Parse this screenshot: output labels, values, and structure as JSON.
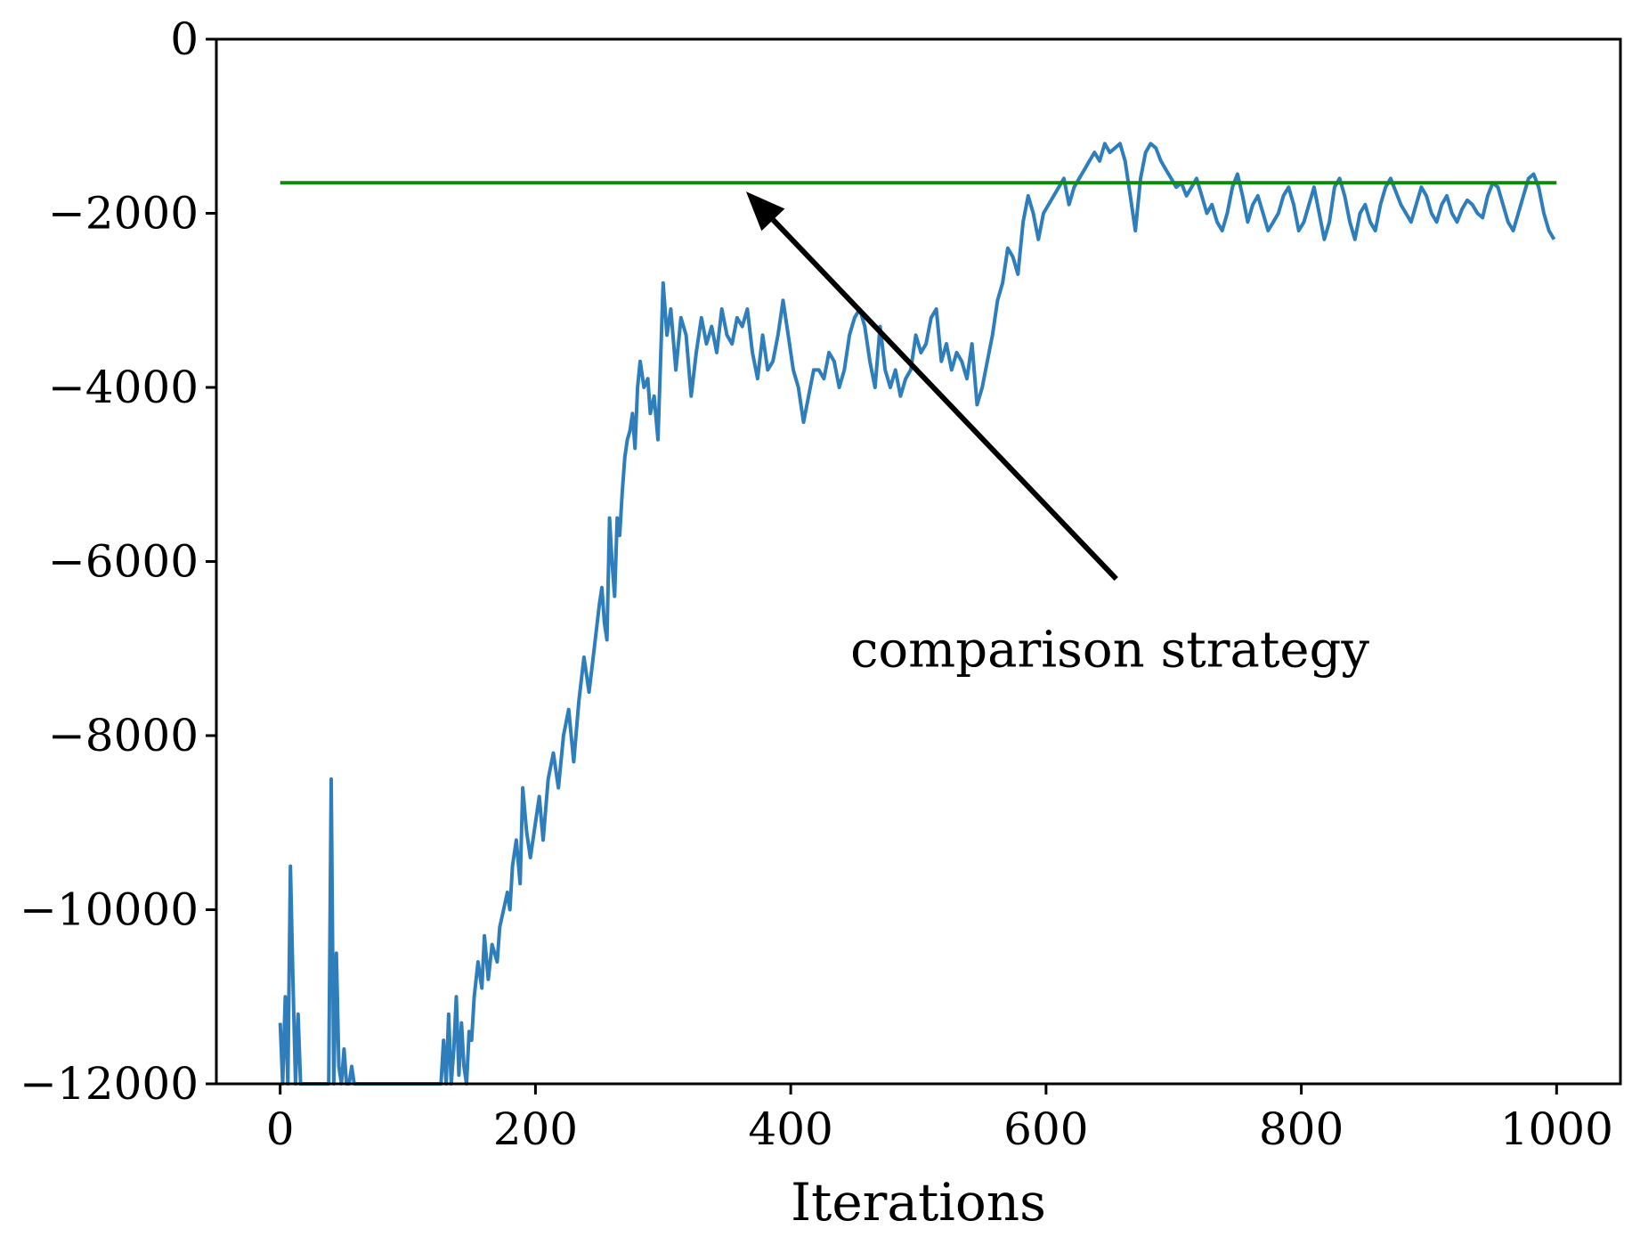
{
  "chart_data": {
    "type": "line",
    "title": "",
    "xlabel": "Iterations",
    "ylabel": "",
    "xlim": [
      -50,
      1050
    ],
    "ylim": [
      -12000,
      0
    ],
    "xticks": [
      0,
      200,
      400,
      600,
      800,
      1000
    ],
    "yticks": [
      0,
      -2000,
      -4000,
      -6000,
      -8000,
      -10000,
      -12000
    ],
    "xtick_labels": [
      "0",
      "200",
      "400",
      "600",
      "800",
      "1000"
    ],
    "ytick_labels": [
      "0",
      "−2000",
      "−4000",
      "−6000",
      "−8000",
      "−10000",
      "−12000"
    ],
    "grid": false,
    "legend": "none",
    "series": [
      {
        "color": "#2e7ebc",
        "x": [
          0,
          2,
          4,
          6,
          8,
          10,
          12,
          14,
          16,
          18,
          20,
          25,
          30,
          34,
          36,
          38,
          40,
          42,
          44,
          46,
          48,
          50,
          52,
          54,
          56,
          58,
          60,
          100,
          104,
          110,
          120,
          126,
          128,
          130,
          132,
          134,
          136,
          138,
          140,
          142,
          144,
          146,
          148,
          150,
          152,
          155,
          158,
          160,
          163,
          166,
          170,
          172,
          175,
          178,
          180,
          182,
          185,
          188,
          190,
          193,
          196,
          200,
          203,
          206,
          210,
          214,
          218,
          222,
          226,
          230,
          234,
          238,
          242,
          246,
          250,
          252,
          254,
          256,
          258,
          260,
          262,
          264,
          266,
          268,
          270,
          272,
          274,
          276,
          278,
          280,
          282,
          285,
          288,
          290,
          293,
          296,
          300,
          303,
          306,
          310,
          314,
          318,
          322,
          326,
          330,
          334,
          338,
          342,
          346,
          350,
          354,
          358,
          362,
          366,
          370,
          374,
          378,
          382,
          386,
          390,
          394,
          398,
          402,
          406,
          410,
          414,
          418,
          422,
          426,
          430,
          434,
          438,
          442,
          446,
          450,
          454,
          458,
          462,
          466,
          470,
          474,
          478,
          482,
          486,
          490,
          494,
          498,
          502,
          506,
          510,
          514,
          518,
          522,
          526,
          530,
          534,
          538,
          542,
          546,
          550,
          554,
          558,
          562,
          566,
          570,
          574,
          578,
          582,
          586,
          590,
          594,
          598,
          602,
          606,
          610,
          614,
          618,
          622,
          626,
          630,
          634,
          638,
          642,
          646,
          650,
          654,
          658,
          662,
          666,
          670,
          674,
          678,
          682,
          686,
          690,
          694,
          698,
          702,
          706,
          710,
          714,
          718,
          722,
          726,
          730,
          734,
          738,
          742,
          746,
          750,
          754,
          758,
          762,
          766,
          770,
          774,
          778,
          782,
          786,
          790,
          794,
          798,
          802,
          806,
          810,
          814,
          818,
          822,
          826,
          830,
          834,
          838,
          842,
          846,
          850,
          854,
          858,
          862,
          866,
          870,
          874,
          878,
          882,
          886,
          890,
          894,
          898,
          902,
          906,
          910,
          914,
          918,
          922,
          926,
          930,
          934,
          938,
          942,
          946,
          950,
          954,
          958,
          962,
          966,
          970,
          974,
          978,
          982,
          986,
          990,
          994,
          998
        ],
        "y": [
          -11300,
          -12000,
          -11000,
          -12000,
          -9500,
          -10800,
          -12000,
          -11200,
          -12000,
          -12000,
          -12000,
          -12000,
          -12000,
          -12000,
          -12000,
          -12000,
          -8500,
          -12000,
          -10500,
          -11800,
          -12000,
          -11600,
          -12000,
          -12000,
          -11800,
          -12000,
          -12000,
          -12000,
          -12000,
          -12000,
          -12000,
          -12000,
          -11500,
          -12000,
          -11200,
          -12000,
          -11600,
          -11000,
          -11900,
          -11300,
          -11800,
          -12000,
          -11400,
          -11500,
          -11000,
          -10600,
          -10900,
          -10300,
          -10800,
          -10400,
          -10600,
          -10200,
          -10000,
          -9800,
          -10000,
          -9500,
          -9200,
          -9700,
          -8600,
          -9100,
          -9400,
          -9000,
          -8700,
          -9200,
          -8500,
          -8200,
          -8600,
          -8000,
          -7700,
          -8300,
          -7600,
          -7100,
          -7500,
          -7000,
          -6500,
          -6300,
          -6700,
          -6900,
          -5500,
          -6000,
          -6400,
          -5500,
          -5700,
          -5200,
          -4800,
          -4600,
          -4500,
          -4300,
          -4700,
          -4000,
          -3700,
          -4000,
          -3900,
          -4300,
          -4100,
          -4600,
          -2800,
          -3400,
          -3100,
          -3800,
          -3200,
          -3400,
          -4100,
          -3600,
          -3200,
          -3500,
          -3300,
          -3600,
          -3100,
          -3400,
          -3500,
          -3200,
          -3300,
          -3100,
          -3600,
          -3900,
          -3400,
          -3800,
          -3700,
          -3400,
          -3000,
          -3400,
          -3800,
          -4000,
          -4400,
          -4100,
          -3800,
          -3800,
          -3900,
          -3600,
          -3700,
          -4000,
          -3800,
          -3400,
          -3200,
          -3100,
          -3300,
          -3700,
          -4000,
          -3300,
          -3800,
          -4000,
          -3800,
          -4100,
          -3900,
          -3800,
          -3400,
          -3600,
          -3500,
          -3200,
          -3100,
          -3700,
          -3500,
          -3800,
          -3600,
          -3700,
          -3900,
          -3500,
          -4200,
          -4000,
          -3700,
          -3400,
          -3000,
          -2800,
          -2400,
          -2500,
          -2700,
          -2100,
          -1800,
          -2000,
          -2300,
          -2000,
          -1900,
          -1800,
          -1700,
          -1600,
          -1900,
          -1700,
          -1600,
          -1500,
          -1400,
          -1300,
          -1400,
          -1200,
          -1300,
          -1250,
          -1200,
          -1400,
          -1800,
          -2200,
          -1600,
          -1300,
          -1200,
          -1250,
          -1400,
          -1500,
          -1600,
          -1700,
          -1650,
          -1800,
          -1700,
          -1600,
          -1800,
          -2000,
          -1900,
          -2100,
          -2200,
          -2000,
          -1700,
          -1550,
          -1800,
          -2100,
          -1900,
          -1800,
          -2000,
          -2200,
          -2100,
          -2000,
          -1800,
          -1700,
          -1900,
          -2200,
          -2100,
          -1900,
          -1700,
          -2000,
          -2300,
          -2100,
          -1700,
          -1600,
          -1800,
          -2100,
          -2300,
          -2000,
          -1900,
          -2100,
          -2200,
          -1900,
          -1700,
          -1600,
          -1750,
          -1900,
          -2000,
          -2100,
          -1900,
          -1700,
          -1800,
          -2000,
          -2100,
          -1900,
          -1800,
          -2000,
          -2100,
          -1950,
          -1850,
          -1900,
          -2000,
          -2050,
          -1800,
          -1650,
          -1700,
          -1900,
          -2100,
          -2200,
          -2000,
          -1800,
          -1600,
          -1550,
          -1700,
          -2000,
          -2200,
          -2300
        ]
      },
      {
        "color": "#0f8a0f",
        "x": [
          0,
          1000
        ],
        "y": [
          -1650,
          -1650
        ]
      }
    ],
    "annotations": [
      {
        "text": "comparison strategy",
        "text_x": 650,
        "text_y": -7000,
        "arrow_from": [
          655,
          -6200
        ],
        "arrow_to": [
          365,
          -1750
        ]
      }
    ]
  }
}
